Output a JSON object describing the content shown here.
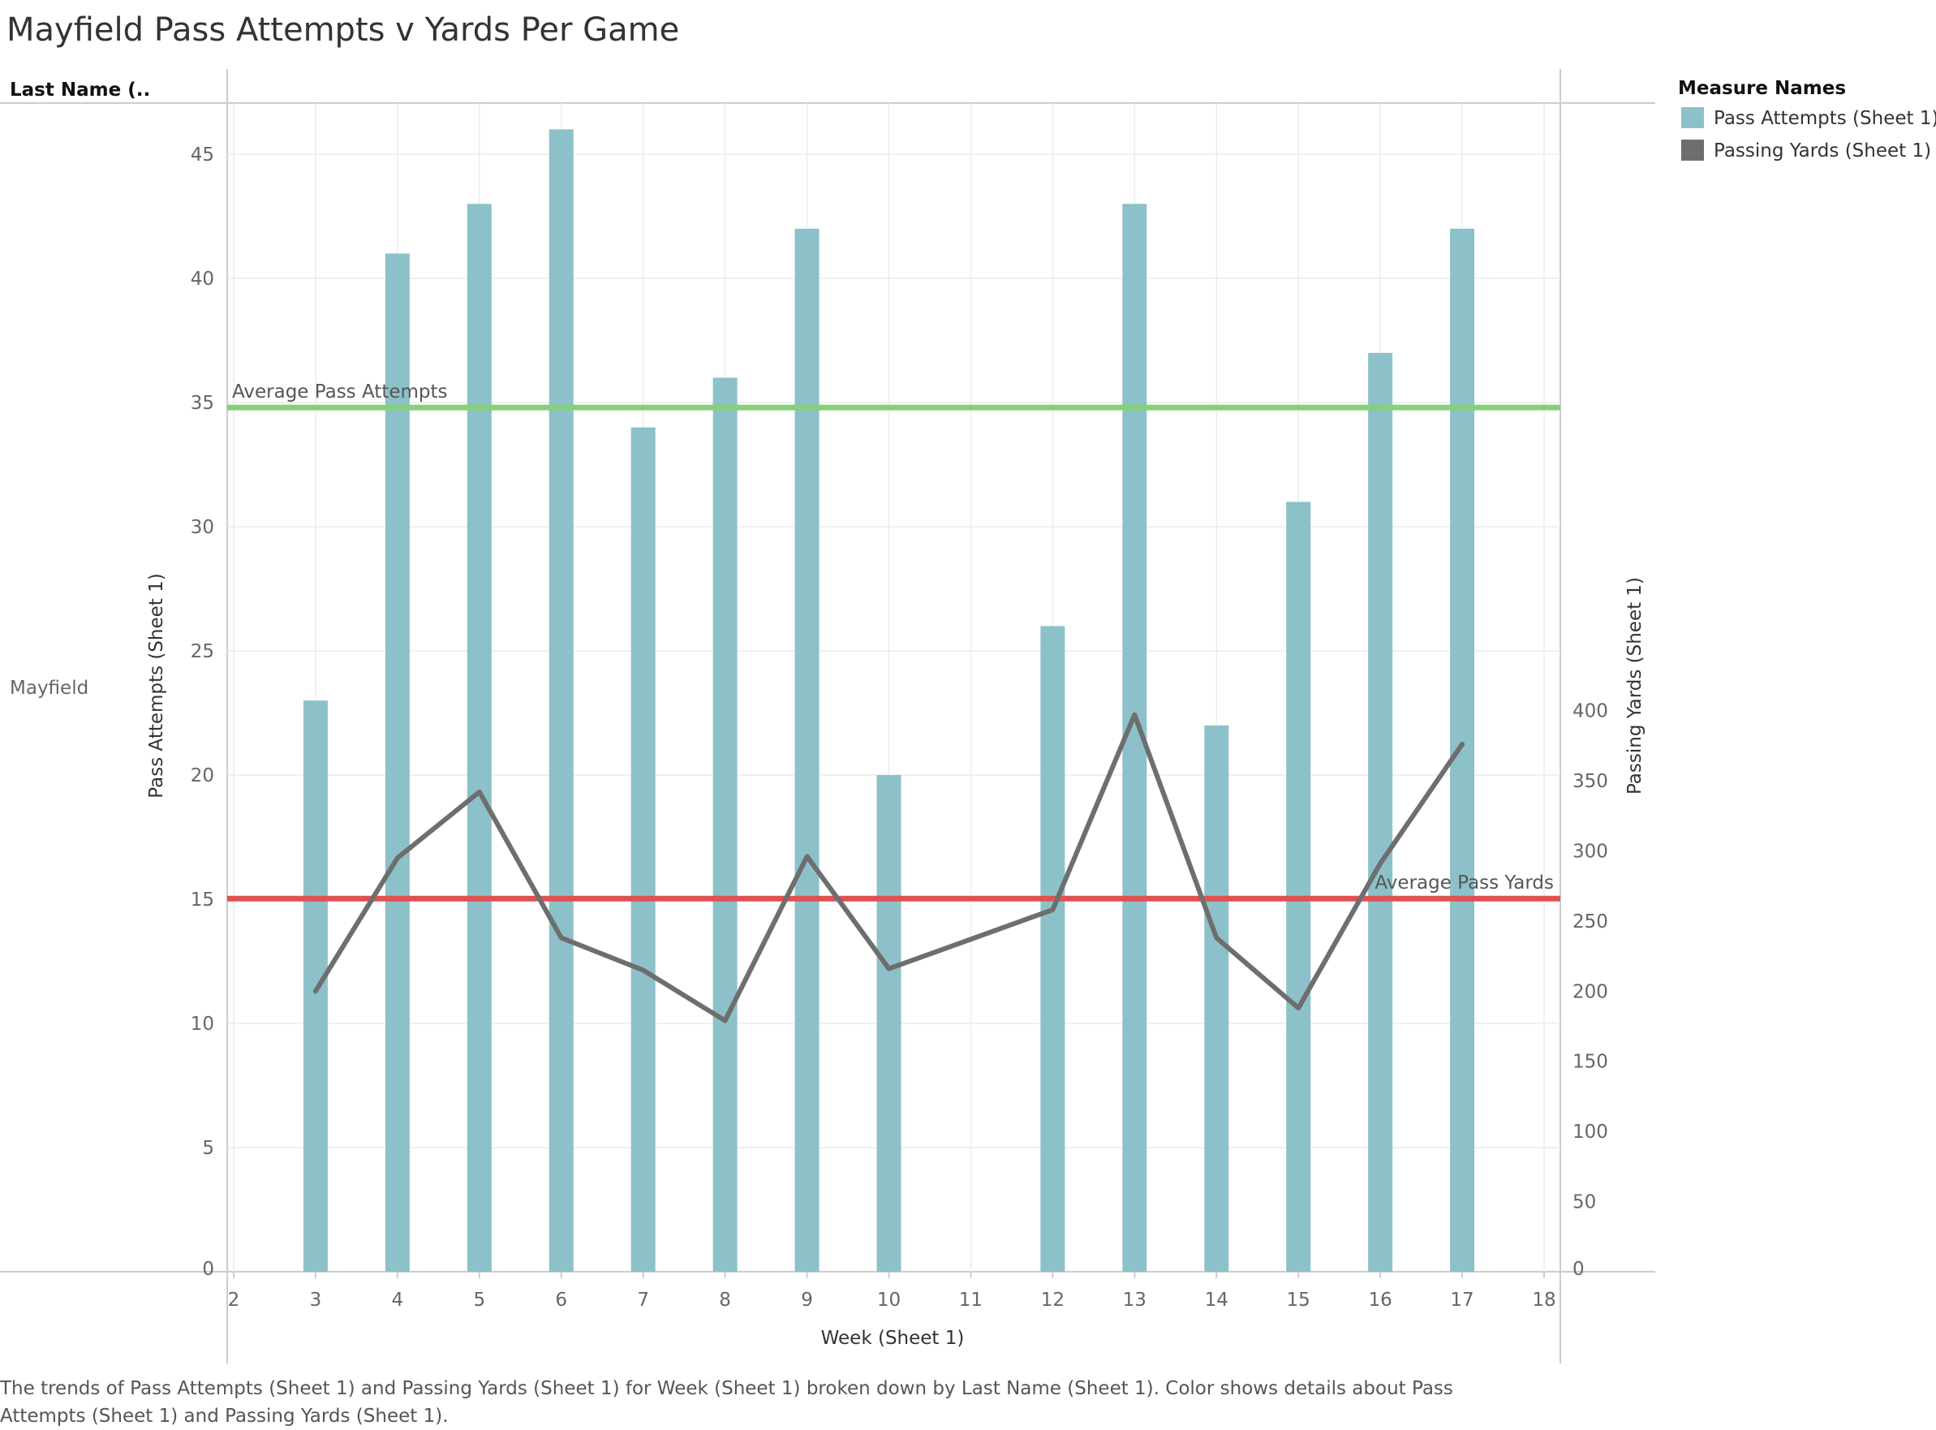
{
  "title": "Mayfield Pass Attempts v Yards Per Game",
  "caption": "The trends of Pass Attempts (Sheet 1) and Passing Yards (Sheet 1) for Week (Sheet 1) broken down by Last Name (Sheet 1).  Color shows details about Pass Attempts (Sheet 1) and Passing Yards (Sheet 1).",
  "row_header": "Last Name (..",
  "row_label": "Mayfield",
  "colors": {
    "bars": "#8dc1c9",
    "line": "#6e6e6e",
    "avg_attempts": "#86d07a",
    "avg_yards": "#e05252",
    "grid": "#ececec",
    "axis": "#cccccc"
  },
  "legend": {
    "title": "Measure Names",
    "placement": "top-right",
    "items": [
      {
        "label": "Pass Attempts (Sheet 1)",
        "color": "#8dc1c9"
      },
      {
        "label": "Passing Yards (Sheet 1)",
        "color": "#6e6e6e"
      }
    ]
  },
  "chart_data": {
    "type": "bar",
    "title": "Mayfield Pass Attempts v Yards Per Game",
    "xlabel": "Week (Sheet 1)",
    "ylabel": "Pass Attempts (Sheet 1)",
    "y2label": "Passing Yards (Sheet 1)",
    "x_ticks": [
      2,
      3,
      4,
      5,
      6,
      7,
      8,
      9,
      10,
      11,
      12,
      13,
      14,
      15,
      16,
      17,
      18
    ],
    "xlim": [
      2,
      18
    ],
    "ylim": [
      0,
      48
    ],
    "y_ticks": [
      0,
      5,
      10,
      15,
      20,
      25,
      30,
      35,
      40,
      45
    ],
    "y2lim": [
      0,
      417
    ],
    "y2_ticks": [
      0,
      50,
      100,
      150,
      200,
      250,
      300,
      350,
      400
    ],
    "grid": true,
    "series": [
      {
        "name": "Pass Attempts (Sheet 1)",
        "mark": "bar",
        "axis": "left",
        "x": [
          3,
          4,
          5,
          6,
          7,
          8,
          9,
          10,
          12,
          13,
          14,
          15,
          16,
          17
        ],
        "values": [
          23,
          41,
          43,
          46,
          34,
          36,
          42,
          20,
          26,
          43,
          22,
          31,
          37,
          42
        ]
      },
      {
        "name": "Passing Yards (Sheet 1)",
        "mark": "line",
        "axis": "right",
        "x": [
          3,
          4,
          5,
          6,
          7,
          8,
          9,
          10,
          12,
          13,
          14,
          15,
          16,
          17
        ],
        "values": [
          200,
          295,
          342,
          238,
          215,
          179,
          296,
          216,
          258,
          397,
          238,
          188,
          291,
          376
        ]
      }
    ],
    "reference_lines": [
      {
        "label": "Average Pass Attempts",
        "axis": "left",
        "value": 34.8
      },
      {
        "label": "Average Pass Yards",
        "axis": "right",
        "value": 266
      }
    ]
  }
}
